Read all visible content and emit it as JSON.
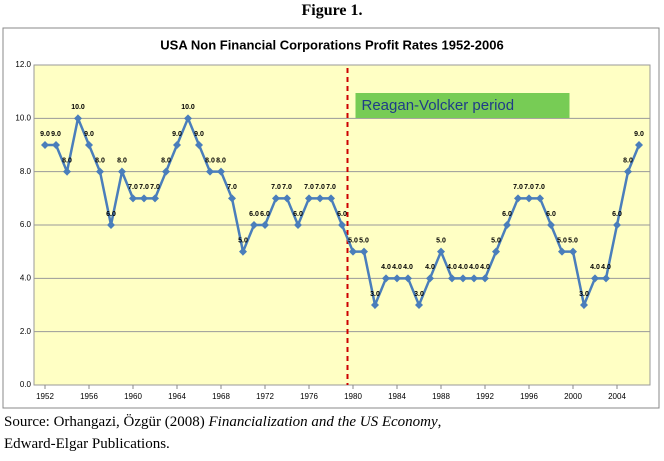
{
  "figure_label": "Figure 1.",
  "chart_data": {
    "type": "line",
    "title": "USA Non Financial Corporations Profit Rates 1952-2006",
    "x": [
      1952,
      1953,
      1954,
      1955,
      1956,
      1957,
      1958,
      1959,
      1960,
      1961,
      1962,
      1963,
      1964,
      1965,
      1966,
      1967,
      1968,
      1969,
      1970,
      1971,
      1972,
      1973,
      1974,
      1975,
      1976,
      1977,
      1978,
      1979,
      1980,
      1981,
      1982,
      1983,
      1984,
      1985,
      1986,
      1987,
      1988,
      1989,
      1990,
      1991,
      1992,
      1993,
      1994,
      1995,
      1996,
      1997,
      1998,
      1999,
      2000,
      2001,
      2002,
      2003,
      2004,
      2005,
      2006
    ],
    "values": [
      9,
      9,
      8,
      10,
      9,
      8,
      6,
      8,
      7,
      7,
      7,
      8,
      9,
      10,
      9,
      8,
      8,
      7,
      5,
      6,
      6,
      7,
      7,
      6,
      7,
      7,
      7,
      6,
      5,
      5,
      3,
      4,
      4,
      4,
      3,
      4,
      5,
      4,
      4,
      4,
      4,
      5,
      6,
      7,
      7,
      7,
      6,
      5,
      5,
      3,
      4,
      4,
      6,
      8,
      9
    ],
    "value_labels": [
      "9.0",
      "9.0",
      "8.0",
      "10.0",
      "9.0",
      "8.0",
      "6.0",
      "8.0",
      "7.0",
      "7.0",
      "7.0",
      "8.0",
      "9.0",
      "10.0",
      "9.0",
      "8.0",
      "8.0",
      "7.0",
      "5.0",
      "6.0",
      "6.0",
      "7.0",
      "7.0",
      "6.0",
      "7.0",
      "7.0",
      "7.0",
      "6.0",
      "5.0",
      "5.0",
      "3.0",
      "4.0",
      "4.0",
      "4.0",
      "3.0",
      "4.0",
      "5.0",
      "4.0",
      "4.0",
      "4.0",
      "4.0",
      "5.0",
      "6.0",
      "7.0",
      "7.0",
      "7.0",
      "6.0",
      "5.0",
      "5.0",
      "3.0",
      "4.0",
      "4.0",
      "6.0",
      "8.0",
      "9.0"
    ],
    "color": "#4a7ebb",
    "xlim": [
      1951,
      2007
    ],
    "xticks": [
      1952,
      1956,
      1960,
      1964,
      1968,
      1972,
      1976,
      1980,
      1984,
      1988,
      1992,
      1996,
      2000,
      2004
    ],
    "ylim": [
      0,
      12
    ],
    "yticks": [
      {
        "value": 0,
        "label": "0.0"
      },
      {
        "value": 2,
        "label": "2.0"
      },
      {
        "value": 4,
        "label": "4.0"
      },
      {
        "value": 6,
        "label": "6.0"
      },
      {
        "value": 8,
        "label": "8.0"
      },
      {
        "value": 10,
        "label": "10.0"
      },
      {
        "value": 12,
        "label": "12.0"
      }
    ],
    "grid": true,
    "annotation": {
      "text": "Reagan-Volcker period",
      "x": 1979.5,
      "color": "#cc0000",
      "box_color": "#77cc55"
    }
  },
  "source": {
    "prefix": "Source: Orhangazi, Özgür (2008) ",
    "title": "Financialization and the US Economy",
    "suffix": ",",
    "line2": "Edward-Elgar Publications."
  }
}
